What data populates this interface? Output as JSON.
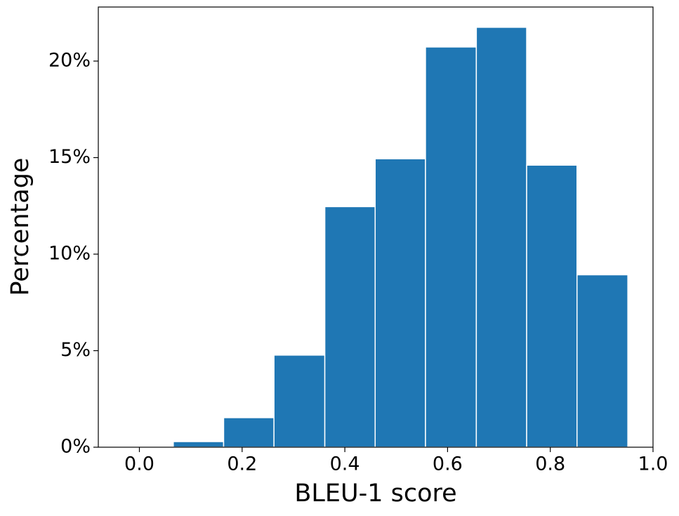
{
  "chart_data": {
    "type": "histogram",
    "x_label": "BLEU-1 score",
    "y_label": "Percentage",
    "bins": [
      0.066,
      0.164,
      0.262,
      0.361,
      0.459,
      0.557,
      0.656,
      0.754,
      0.852,
      0.951
    ],
    "values": [
      0.29,
      1.53,
      4.77,
      12.46,
      14.94,
      20.73,
      21.75,
      14.61,
      8.93
    ],
    "color": "#1f77b4",
    "xlim": [
      -0.08,
      1.0
    ],
    "xticks": [
      {
        "value": 0,
        "label": "0.0"
      },
      0.2,
      0.4,
      0.6,
      0.8,
      {
        "value": 1,
        "label": "1.0"
      }
    ],
    "ylim": [
      0,
      22.8
    ],
    "yticks": [
      {
        "value": 0,
        "label": "0%"
      },
      {
        "value": 5,
        "label": "5%"
      },
      {
        "value": 10,
        "label": "10%"
      },
      {
        "value": 15,
        "label": "15%"
      },
      {
        "value": 20,
        "label": "20%"
      }
    ]
  }
}
